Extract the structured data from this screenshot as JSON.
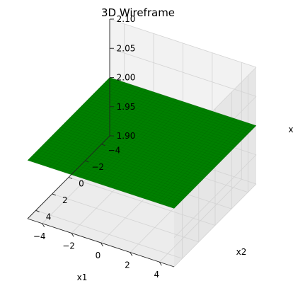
{
  "chart_data": {
    "type": "wireframe",
    "title": "3D Wireframe",
    "xlabel": "x1",
    "ylabel": "x2",
    "zlabel": "x",
    "x_ticks": [
      "−4",
      "−2",
      "0",
      "2",
      "4"
    ],
    "y_ticks": [
      "−4",
      "−2",
      "0",
      "2",
      "4"
    ],
    "z_ticks": [
      "1.90",
      "1.95",
      "2.00",
      "2.05",
      "2.10"
    ],
    "xlim": [
      -5,
      5
    ],
    "ylim": [
      -5,
      5
    ],
    "zlim": [
      1.9,
      2.1
    ],
    "surface": {
      "function": "x = 2 (constant)",
      "z_value": 2.0,
      "x_range": [
        -5,
        5
      ],
      "y_range": [
        -5,
        5
      ]
    },
    "grid": true,
    "colors": {
      "wire": "#008000",
      "pane": "#f2f2f2",
      "grid": "#d3d3d3"
    }
  }
}
